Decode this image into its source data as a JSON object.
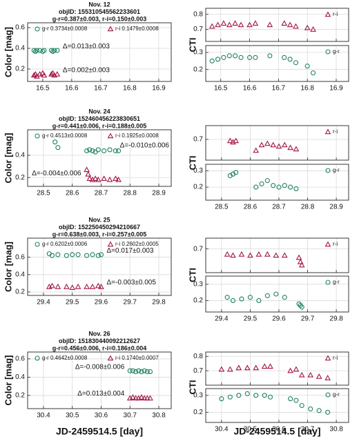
{
  "chart_data": [
    {
      "type": "scatter",
      "title": [
        "Nov. 12",
        "objID: 155310545562233601",
        "g-r=0.387±0.003, r-i=0.150±0.003"
      ],
      "y_label": "Color [mag]",
      "xlim": [
        16.448,
        16.943
      ],
      "xticks": [
        16.5,
        16.6,
        16.7,
        16.8,
        16.9
      ],
      "ylim": [
        0.08,
        0.647
      ],
      "yticks": [
        0.2,
        0.4,
        0.6
      ],
      "grid": true,
      "series": [
        {
          "name": "g-r 0.3734±0.0008",
          "color": "#1b8060",
          "marker": "circle",
          "x": [
            16.47,
            16.475,
            16.48,
            16.49,
            16.5,
            16.505,
            16.53,
            16.535,
            16.54,
            16.55
          ],
          "y": [
            0.38,
            0.37,
            0.38,
            0.38,
            0.37,
            0.38,
            0.38,
            0.37,
            0.38,
            0.38
          ]
        },
        {
          "name": "r-i 0.1479±0.0008",
          "color": "#a3123f",
          "marker": "triangle",
          "x": [
            16.47,
            16.475,
            16.48,
            16.49,
            16.5,
            16.505,
            16.53,
            16.535,
            16.54,
            16.55
          ],
          "y": [
            0.14,
            0.15,
            0.13,
            0.15,
            0.16,
            0.14,
            0.15,
            0.16,
            0.14,
            0.15
          ]
        }
      ],
      "annotations": [
        "Δ=0.013±0.003",
        "Δ=0.002±0.003"
      ]
    },
    {
      "type": "scatter",
      "y_label": "CTI",
      "xlim": [
        16.448,
        16.943
      ],
      "xticks": [
        16.5,
        16.6,
        16.7,
        16.8,
        16.9
      ],
      "ylim": [
        0.62,
        0.84
      ],
      "yticks": [
        0.7,
        0.8
      ],
      "grid": true,
      "series": [
        {
          "name": "r-i",
          "color": "#a3123f",
          "marker": "triangle",
          "x": [
            16.47,
            16.49,
            16.51,
            16.53,
            16.55,
            16.57,
            16.6,
            16.62,
            16.67,
            16.72,
            16.74,
            16.76,
            16.8,
            16.82
          ],
          "y": [
            0.72,
            0.73,
            0.74,
            0.73,
            0.74,
            0.73,
            0.73,
            0.74,
            0.73,
            0.74,
            0.73,
            0.72,
            0.71,
            0.7
          ]
        }
      ]
    },
    {
      "type": "scatter",
      "xlim": [
        16.448,
        16.943
      ],
      "xticks": [
        16.5,
        16.6,
        16.7,
        16.8,
        16.9
      ],
      "ylim": [
        0.13,
        0.34
      ],
      "yticks": [
        0.2,
        0.3
      ],
      "grid": true,
      "series": [
        {
          "name": "g-r",
          "color": "#1b8060",
          "marker": "circle",
          "x": [
            16.47,
            16.49,
            16.51,
            16.53,
            16.55,
            16.57,
            16.6,
            16.62,
            16.67,
            16.72,
            16.74,
            16.76,
            16.8,
            16.82
          ],
          "y": [
            0.25,
            0.26,
            0.27,
            0.28,
            0.28,
            0.27,
            0.27,
            0.27,
            0.28,
            0.27,
            0.26,
            0.24,
            0.22,
            0.18
          ]
        }
      ]
    },
    {
      "type": "scatter",
      "title": [
        "Nov. 24",
        "objID: 152460456223830651",
        "g-r=0.441±0.006, r-i=0.188±0.005"
      ],
      "y_label": "Color [mag]",
      "xlim": [
        28.445,
        28.943
      ],
      "xticks": [
        28.5,
        28.6,
        28.7,
        28.8,
        28.9
      ],
      "ylim": [
        0.12,
        0.63
      ],
      "yticks": [
        0.2,
        0.4
      ],
      "grid": true,
      "series": [
        {
          "name": "g-r 0.4513±0.0008",
          "color": "#1b8060",
          "marker": "circle",
          "x": [
            28.54,
            28.55,
            28.65,
            28.66,
            28.67,
            28.68,
            28.69,
            28.71,
            28.73,
            28.75,
            28.76
          ],
          "y": [
            0.52,
            0.47,
            0.44,
            0.45,
            0.44,
            0.43,
            0.45,
            0.44,
            0.45,
            0.44,
            0.44
          ]
        },
        {
          "name": "r-i 0.1925±0.0008",
          "color": "#a3123f",
          "marker": "triangle",
          "x": [
            28.65,
            28.655,
            28.66,
            28.67,
            28.68,
            28.69,
            28.71,
            28.73,
            28.75,
            28.76
          ],
          "y": [
            0.27,
            0.23,
            0.19,
            0.18,
            0.19,
            0.18,
            0.19,
            0.18,
            0.19,
            0.18
          ]
        }
      ],
      "annotations": [
        "Δ=-0.010±0.006",
        "Δ=-0.004±0.006"
      ]
    },
    {
      "type": "scatter",
      "y_label": "CTI",
      "xlim": [
        28.445,
        28.943
      ],
      "xticks": [
        28.5,
        28.6,
        28.7,
        28.8,
        28.9
      ],
      "ylim": [
        0.55,
        0.8
      ],
      "yticks": [
        0.7
      ],
      "grid": true,
      "series": [
        {
          "name": "r-i",
          "color": "#a3123f",
          "marker": "triangle",
          "x": [
            28.53,
            28.54,
            28.55,
            28.62,
            28.64,
            28.66,
            28.68,
            28.7,
            28.72,
            28.74,
            28.76
          ],
          "y": [
            0.69,
            0.68,
            0.69,
            0.62,
            0.66,
            0.67,
            0.66,
            0.65,
            0.66,
            0.64,
            0.63
          ]
        }
      ]
    },
    {
      "type": "scatter",
      "xlim": [
        28.445,
        28.943
      ],
      "xticks": [
        28.5,
        28.6,
        28.7,
        28.8,
        28.9
      ],
      "ylim": [
        0.12,
        0.34
      ],
      "yticks": [
        0.2,
        0.3
      ],
      "grid": true,
      "series": [
        {
          "name": "g-r",
          "color": "#1b8060",
          "marker": "circle",
          "x": [
            28.53,
            28.54,
            28.55,
            28.62,
            28.64,
            28.66,
            28.68,
            28.7,
            28.72,
            28.74,
            28.76
          ],
          "y": [
            0.27,
            0.28,
            0.29,
            0.2,
            0.22,
            0.24,
            0.21,
            0.2,
            0.21,
            0.2,
            0.19
          ]
        }
      ]
    },
    {
      "type": "scatter",
      "title": [
        "Nov. 25",
        "objID: 152250450294210667",
        "g-r=0.638±0.003, r-i=0.257±0.005"
      ],
      "y_label": "Color [mag]",
      "xlim": [
        29.345,
        29.843
      ],
      "xticks": [
        29.4,
        29.5,
        29.6,
        29.7,
        29.8
      ],
      "ylim": [
        0.16,
        0.82
      ],
      "yticks": [
        0.2,
        0.4,
        0.6
      ],
      "grid": true,
      "series": [
        {
          "name": "g-r 0.6202±0.0006",
          "color": "#1b8060",
          "marker": "circle",
          "x": [
            29.42,
            29.43,
            29.45,
            29.48,
            29.5,
            29.52,
            29.55,
            29.57,
            29.59,
            29.6
          ],
          "y": [
            0.64,
            0.62,
            0.63,
            0.62,
            0.63,
            0.63,
            0.62,
            0.63,
            0.62,
            0.63
          ]
        },
        {
          "name": "r-i 0.2602±0.0005",
          "color": "#a3123f",
          "marker": "triangle",
          "x": [
            29.42,
            29.43,
            29.45,
            29.48,
            29.5,
            29.52,
            29.55,
            29.57,
            29.59,
            29.6
          ],
          "y": [
            0.26,
            0.27,
            0.26,
            0.26,
            0.25,
            0.26,
            0.26,
            0.26,
            0.27,
            0.26
          ]
        }
      ],
      "annotations": [
        "Δ=0.017±0.003",
        "Δ=-0.003±0.005"
      ]
    },
    {
      "type": "scatter",
      "y_label": "CTI",
      "xlim": [
        29.345,
        29.843
      ],
      "xticks": [
        29.4,
        29.5,
        29.6,
        29.7,
        29.8
      ],
      "ylim": [
        0.48,
        0.8
      ],
      "yticks": [
        0.7
      ],
      "grid": true,
      "series": [
        {
          "name": "r-i",
          "color": "#a3123f",
          "marker": "triangle",
          "x": [
            29.42,
            29.44,
            29.47,
            29.5,
            29.53,
            29.56,
            29.59,
            29.62,
            29.67,
            29.675,
            29.68
          ],
          "y": [
            0.65,
            0.64,
            0.65,
            0.64,
            0.65,
            0.65,
            0.64,
            0.64,
            0.62,
            0.58,
            0.55
          ]
        }
      ]
    },
    {
      "type": "scatter",
      "xlim": [
        29.345,
        29.843
      ],
      "xticks": [
        29.4,
        29.5,
        29.6,
        29.7,
        29.8
      ],
      "ylim": [
        0.13,
        0.35
      ],
      "yticks": [
        0.2,
        0.3
      ],
      "grid": true,
      "series": [
        {
          "name": "g-r",
          "color": "#1b8060",
          "marker": "circle",
          "x": [
            29.42,
            29.44,
            29.47,
            29.5,
            29.53,
            29.56,
            29.59,
            29.62,
            29.67,
            29.675,
            29.68
          ],
          "y": [
            0.22,
            0.2,
            0.21,
            0.22,
            0.2,
            0.23,
            0.24,
            0.22,
            0.18,
            0.17,
            0.16
          ]
        }
      ]
    },
    {
      "type": "scatter",
      "title": [
        "Nov. 26",
        "objID: 151830440092212627",
        "g-r=0.456±0.006, r-i=0.186±0.004"
      ],
      "y_label": "Color [mag]",
      "x_label": "JD-2459514.5 [day]",
      "xlim": [
        30.345,
        30.843
      ],
      "xticks": [
        30.4,
        30.5,
        30.6,
        30.7,
        30.8
      ],
      "ylim": [
        0.056,
        0.675
      ],
      "yticks": [
        0.2,
        0.4,
        0.6
      ],
      "grid": true,
      "series": [
        {
          "name": "g-r 0.4642±0.0008",
          "color": "#1b8060",
          "marker": "circle",
          "x": [
            30.7,
            30.71,
            30.72,
            30.73,
            30.74,
            30.75,
            30.76,
            30.77
          ],
          "y": [
            0.47,
            0.47,
            0.46,
            0.47,
            0.46,
            0.47,
            0.46,
            0.46
          ]
        },
        {
          "name": "r-i 0.1740±0.0007",
          "color": "#a3123f",
          "marker": "triangle",
          "x": [
            30.7,
            30.71,
            30.72,
            30.73,
            30.74,
            30.75,
            30.76,
            30.77
          ],
          "y": [
            0.17,
            0.18,
            0.17,
            0.17,
            0.18,
            0.17,
            0.17,
            0.17
          ]
        }
      ],
      "annotations": [
        "Δ=-0.008±0.006",
        "Δ=0.013±0.004"
      ]
    },
    {
      "type": "scatter",
      "y_label": "CTI",
      "xlim": [
        30.345,
        30.843
      ],
      "xticks": [
        30.4,
        30.5,
        30.6,
        30.7,
        30.8
      ],
      "ylim": [
        0.6,
        0.83
      ],
      "yticks": [
        0.7,
        0.8
      ],
      "grid": true,
      "series": [
        {
          "name": "r-i",
          "color": "#a3123f",
          "marker": "triangle",
          "x": [
            30.4,
            30.43,
            30.46,
            30.49,
            30.52,
            30.55,
            30.57,
            30.64,
            30.66,
            30.68,
            30.71,
            30.74,
            30.77
          ],
          "y": [
            0.71,
            0.71,
            0.72,
            0.72,
            0.72,
            0.73,
            0.73,
            0.7,
            0.71,
            0.67,
            0.67,
            0.66,
            0.65
          ]
        }
      ]
    },
    {
      "type": "scatter",
      "x_label": "JD-2459514.5 [day]",
      "xlim": [
        30.345,
        30.843
      ],
      "xticks": [
        30.4,
        30.5,
        30.6,
        30.7,
        30.8
      ],
      "ylim": [
        0.14,
        0.34
      ],
      "yticks": [
        0.2,
        0.3
      ],
      "grid": true,
      "series": [
        {
          "name": "g-r",
          "color": "#1b8060",
          "marker": "circle",
          "x": [
            30.4,
            30.43,
            30.46,
            30.49,
            30.52,
            30.55,
            30.57,
            30.64,
            30.66,
            30.68,
            30.71,
            30.74,
            30.77
          ],
          "y": [
            0.28,
            0.29,
            0.3,
            0.31,
            0.3,
            0.3,
            0.29,
            0.28,
            0.27,
            0.24,
            0.22,
            0.21,
            0.2
          ]
        }
      ]
    }
  ]
}
